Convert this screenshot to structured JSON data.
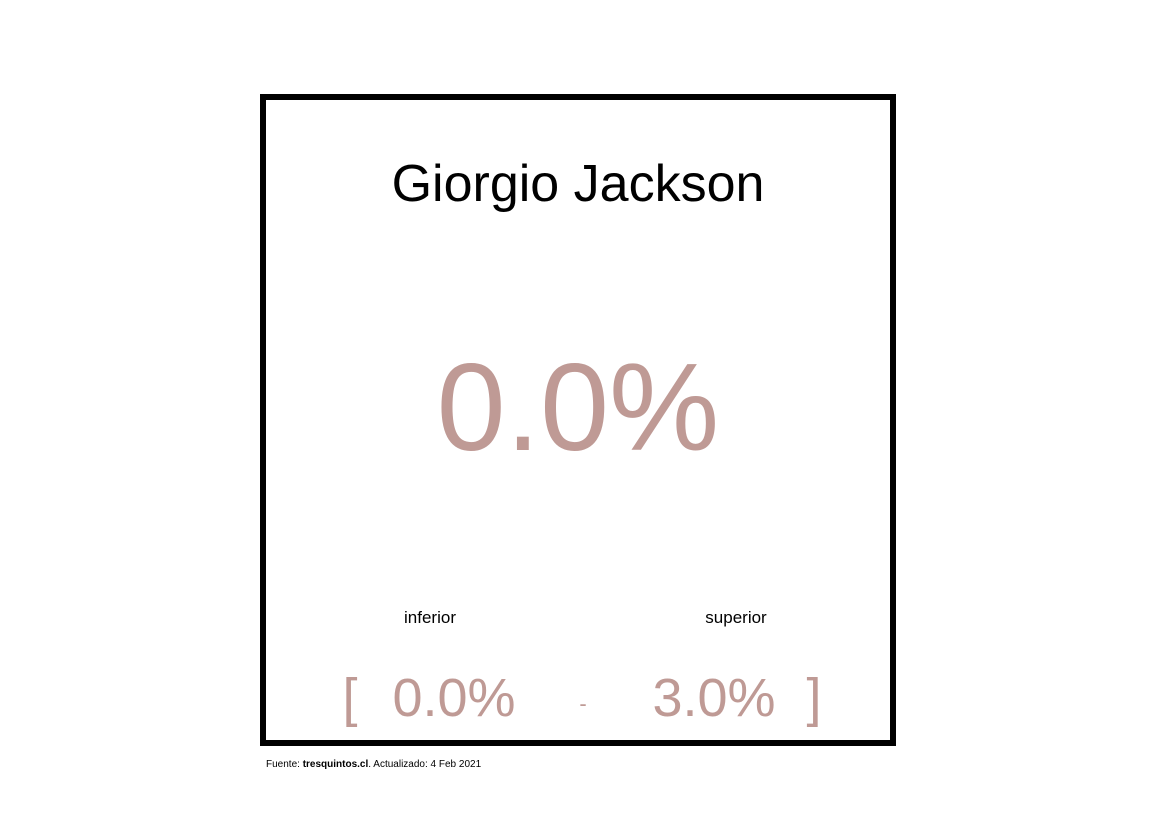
{
  "card": {
    "title": "Giorgio Jackson",
    "main_value": "0.0%",
    "labels": {
      "inferior": "inferior",
      "superior": "superior"
    },
    "range": {
      "open_bracket": "[",
      "lower": "0.0%",
      "separator": "-",
      "upper": "3.0%",
      "close_bracket": "]"
    }
  },
  "footer": {
    "source_prefix": "Fuente:",
    "source_site": "tresquintos.cl",
    "updated_text": ". Actualizado: 4 Feb 2021"
  },
  "colors": {
    "accent": "#bf9a95",
    "border": "#000000"
  }
}
